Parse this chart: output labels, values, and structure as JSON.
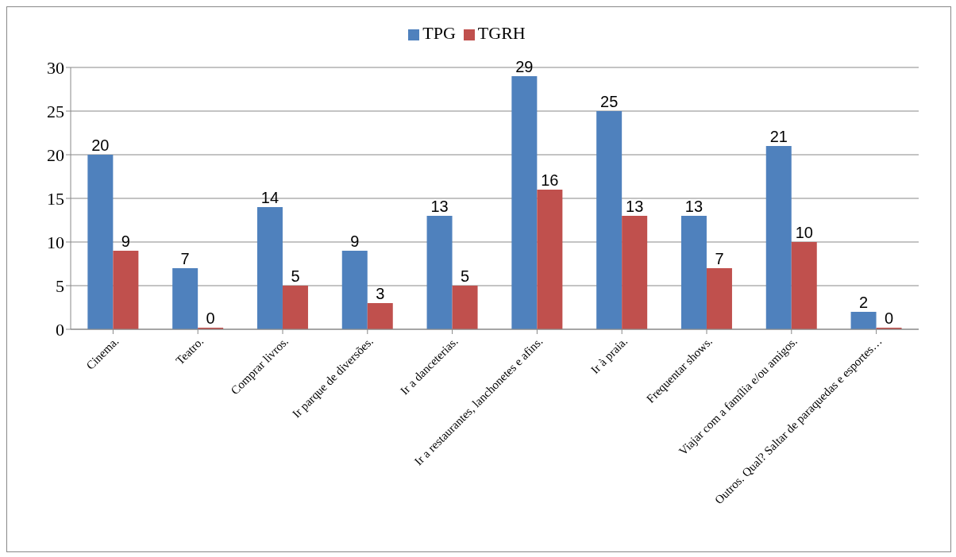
{
  "chart_data": {
    "type": "bar",
    "categories": [
      "Cinema.",
      "Teatro.",
      "Comprar livros.",
      "Ir parque de diversões.",
      "Ir a danceterias.",
      "Ir a restaurantes, lanchonetes e afins.",
      "Ir à praia.",
      "Frequentar shows.",
      "Viajar com a família e/ou amigos.",
      "Outros. Qual? Saltar de paraquedas e esportes…"
    ],
    "series": [
      {
        "name": "TPG",
        "color": "#4f81bd",
        "values": [
          20,
          7,
          14,
          9,
          13,
          29,
          25,
          13,
          21,
          2
        ]
      },
      {
        "name": "TGRH",
        "color": "#c0504d",
        "values": [
          9,
          0,
          5,
          3,
          5,
          16,
          13,
          7,
          10,
          0
        ]
      }
    ],
    "ylim": [
      0,
      30
    ],
    "yticks": [
      0,
      5,
      10,
      15,
      20,
      25,
      30
    ],
    "grid": "y",
    "legend": "top",
    "data_labels": true
  }
}
